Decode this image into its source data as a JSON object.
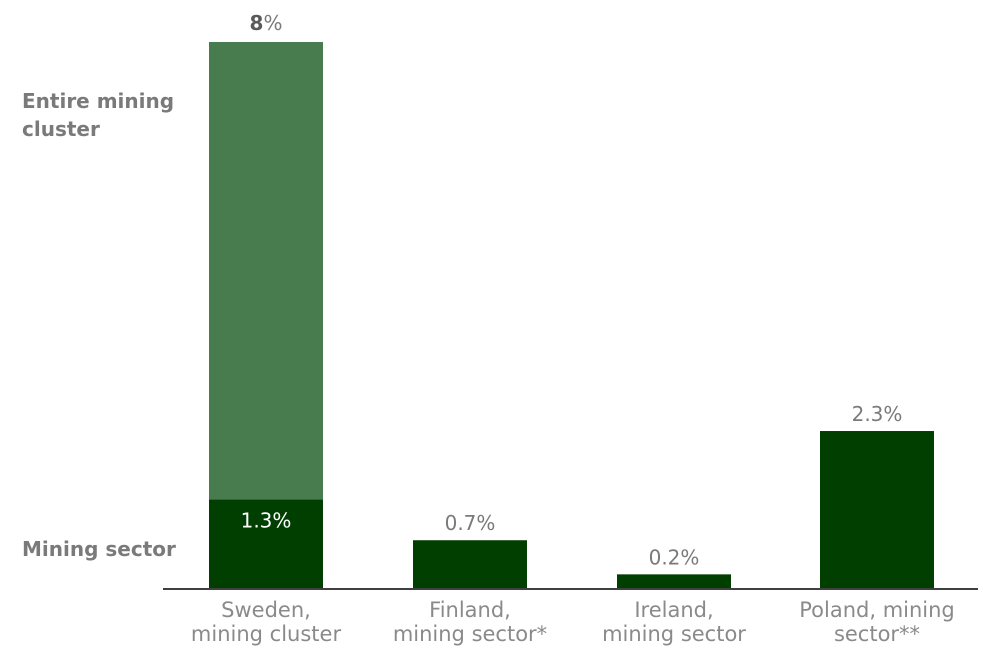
{
  "chart_data": {
    "type": "bar",
    "categories": [
      [
        "Sweden,",
        "mining cluster"
      ],
      [
        "Finland,",
        "mining sector*"
      ],
      [
        "Ireland,",
        "mining sector"
      ],
      [
        "Poland, mining",
        "sector**"
      ]
    ],
    "series": [
      {
        "values": [
          1.3,
          0.7,
          0.2,
          2.3
        ],
        "labels": [
          "1.3%",
          "0.7%",
          "0.2%",
          "2.3%"
        ],
        "color": "#003f00"
      },
      {
        "values": [
          6.7,
          null,
          null,
          null
        ],
        "color": "#487b4e"
      }
    ],
    "totals": [
      {
        "category_index": 0,
        "value": 8,
        "number": "8",
        "unit": "%"
      }
    ],
    "side_labels": {
      "top": [
        "Entire mining",
        "cluster"
      ],
      "bottom": "Mining sector"
    },
    "ylim": [
      0,
      8
    ],
    "grid": false,
    "colors": {
      "mining_sector": "#003f00",
      "mining_cluster": "#487b4e",
      "axis": "#000000",
      "text": "#7a7a7a"
    }
  }
}
